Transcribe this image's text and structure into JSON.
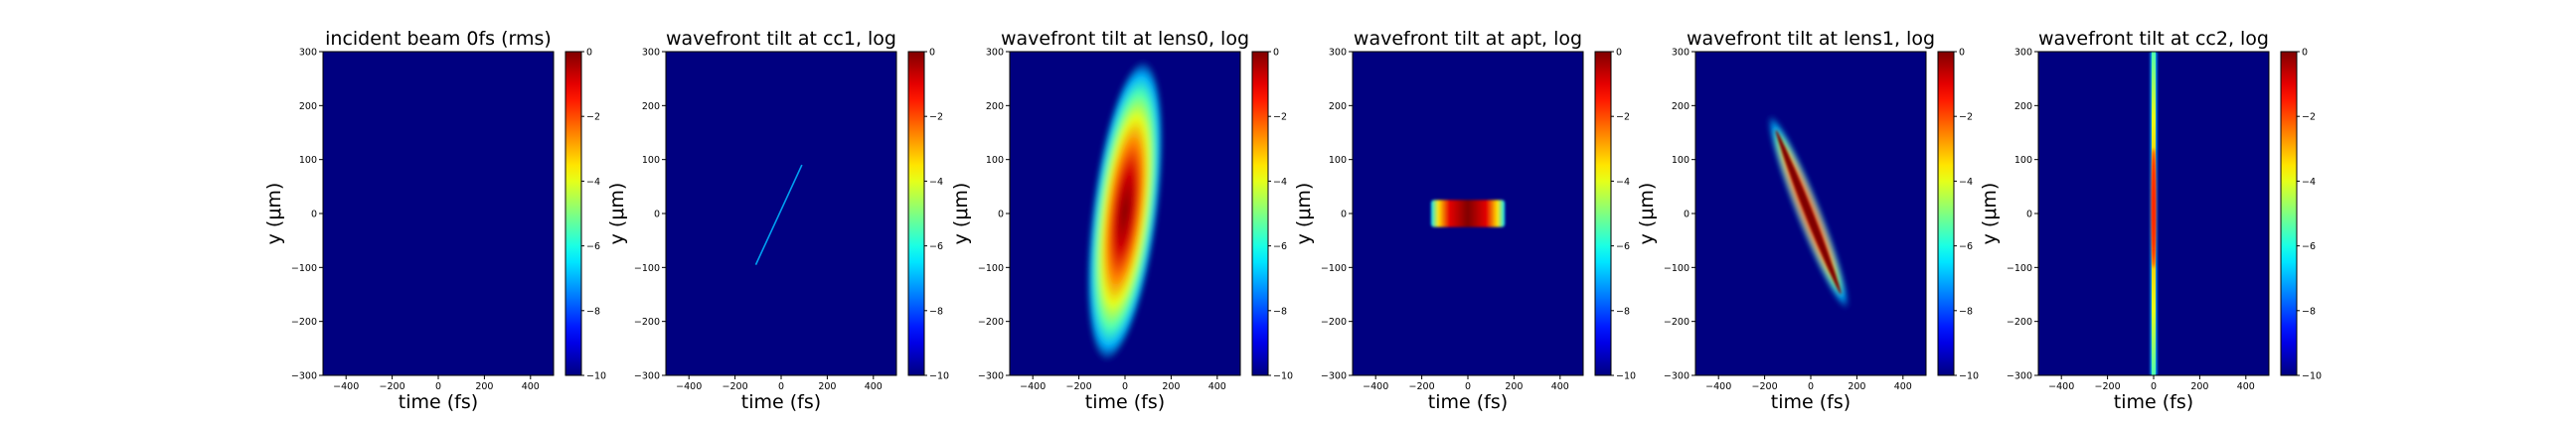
{
  "colorbar": {
    "colormap": "jet",
    "ticks": [
      0,
      -2,
      -4,
      -6,
      -8,
      -10
    ],
    "tick_labels": [
      "0",
      "−2",
      "−4",
      "−6",
      "−8",
      "−10"
    ],
    "range": [
      -10,
      0
    ]
  },
  "chart_data": [
    {
      "type": "heatmap",
      "title": "incident beam 0fs (rms)",
      "xlabel": "time (fs)",
      "ylabel": "y (μm)",
      "xlim": [
        -500,
        500
      ],
      "ylim": [
        -300,
        300
      ],
      "xticks": [
        -400,
        -200,
        0,
        200,
        400
      ],
      "yticks": [
        -300,
        -200,
        -100,
        0,
        100,
        200,
        300
      ],
      "xtick_labels": [
        "−400",
        "−200",
        "0",
        "200",
        "400"
      ],
      "ytick_labels": [
        "−300",
        "−200",
        "−100",
        "0",
        "100",
        "200",
        "300"
      ],
      "background_value": -10,
      "feature": {
        "shape": "none"
      }
    },
    {
      "type": "heatmap",
      "title": "wavefront tilt at cc1, log",
      "xlabel": "time (fs)",
      "ylabel": "y (μm)",
      "xlim": [
        -500,
        500
      ],
      "ylim": [
        -300,
        300
      ],
      "xticks": [
        -400,
        -200,
        0,
        200,
        400
      ],
      "yticks": [
        -300,
        -200,
        -100,
        0,
        100,
        200,
        300
      ],
      "xtick_labels": [
        "−400",
        "−200",
        "0",
        "200",
        "400"
      ],
      "ytick_labels": [
        "−300",
        "−200",
        "−100",
        "0",
        "100",
        "200",
        "300"
      ],
      "background_value": -10,
      "feature": {
        "shape": "line",
        "from": [
          -110,
          -95
        ],
        "to": [
          90,
          90
        ],
        "peak_value": -7
      }
    },
    {
      "type": "heatmap",
      "title": "wavefront tilt at lens0, log",
      "xlabel": "time (fs)",
      "ylabel": "y (μm)",
      "xlim": [
        -500,
        500
      ],
      "ylim": [
        -300,
        300
      ],
      "xticks": [
        -400,
        -200,
        0,
        200,
        400
      ],
      "yticks": [
        -300,
        -200,
        -100,
        0,
        100,
        200,
        300
      ],
      "xtick_labels": [
        "−400",
        "−200",
        "0",
        "200",
        "400"
      ],
      "ytick_labels": [
        "−300",
        "−200",
        "−100",
        "0",
        "100",
        "200",
        "300"
      ],
      "background_value": -10,
      "feature": {
        "shape": "ellipse",
        "center": [
          0,
          5
        ],
        "half_width_fs": 140,
        "half_height_um": 280,
        "tilt_fs_per_um": 0.3,
        "peak_value": 0
      }
    },
    {
      "type": "heatmap",
      "title": "wavefront tilt at apt, log",
      "xlabel": "time (fs)",
      "ylabel": "y (μm)",
      "xlim": [
        -500,
        500
      ],
      "ylim": [
        -300,
        300
      ],
      "xticks": [
        -400,
        -200,
        0,
        200,
        400
      ],
      "yticks": [
        -300,
        -200,
        -100,
        0,
        100,
        200,
        300
      ],
      "xtick_labels": [
        "−400",
        "−200",
        "0",
        "200",
        "400"
      ],
      "ytick_labels": [
        "−300",
        "−200",
        "−100",
        "0",
        "100",
        "200",
        "300"
      ],
      "background_value": -10,
      "feature": {
        "shape": "band",
        "x_range": [
          -160,
          160
        ],
        "y_range": [
          -25,
          25
        ],
        "peak_value": 0
      }
    },
    {
      "type": "heatmap",
      "title": "wavefront tilt at lens1, log",
      "xlabel": "time (fs)",
      "ylabel": "y (μm)",
      "xlim": [
        -500,
        500
      ],
      "ylim": [
        -300,
        300
      ],
      "xticks": [
        -400,
        -200,
        0,
        200,
        400
      ],
      "yticks": [
        -300,
        -200,
        -100,
        0,
        100,
        200,
        300
      ],
      "xtick_labels": [
        "−400",
        "−200",
        "0",
        "200",
        "400"
      ],
      "ytick_labels": [
        "−300",
        "−200",
        "−100",
        "0",
        "100",
        "200",
        "300"
      ],
      "background_value": -10,
      "feature": {
        "shape": "streak",
        "from": [
          -170,
          175
        ],
        "to": [
          150,
          -170
        ],
        "half_width_fs": 45,
        "peak_value": 0
      }
    },
    {
      "type": "heatmap",
      "title": "wavefront tilt at cc2, log",
      "xlabel": "time (fs)",
      "ylabel": "y (μm)",
      "xlim": [
        -500,
        500
      ],
      "ylim": [
        -300,
        300
      ],
      "xticks": [
        -400,
        -200,
        0,
        200,
        400
      ],
      "yticks": [
        -300,
        -200,
        -100,
        0,
        100,
        200,
        300
      ],
      "xtick_labels": [
        "−400",
        "−200",
        "0",
        "200",
        "400"
      ],
      "ytick_labels": [
        "−300",
        "−200",
        "−100",
        "0",
        "100",
        "200",
        "300"
      ],
      "background_value": -10,
      "feature": {
        "shape": "vertical",
        "x_center": 0,
        "y_range": [
          -300,
          300
        ],
        "half_width_fs": 14,
        "peak_value": 0
      }
    }
  ]
}
